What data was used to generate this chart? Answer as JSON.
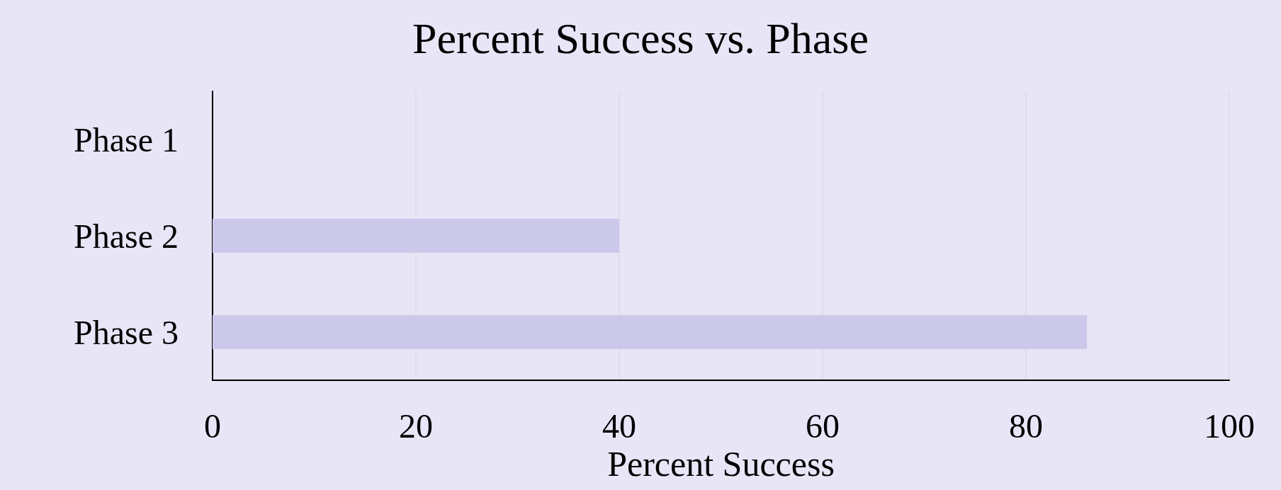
{
  "chart_data": {
    "type": "bar",
    "title": "Percent Success vs. Phase",
    "xlabel": "Percent Success",
    "orientation": "horizontal",
    "categories": [
      "Phase 1",
      "Phase 2",
      "Phase 3"
    ],
    "values": [
      0,
      40,
      86
    ],
    "color": "#ccc8ea",
    "xlim": [
      0,
      100
    ],
    "xticks": [
      0,
      20,
      40,
      60,
      80,
      100
    ],
    "grid": "x"
  }
}
